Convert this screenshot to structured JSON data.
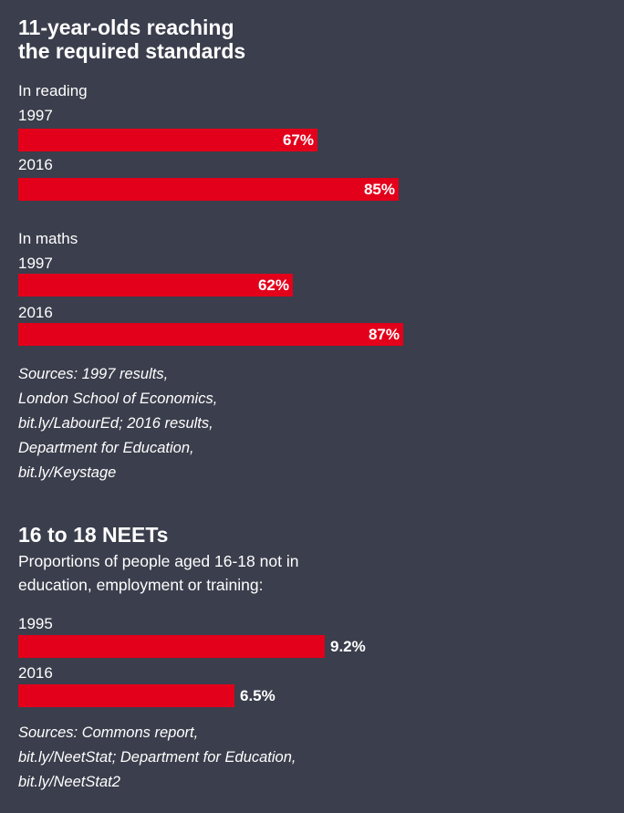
{
  "section1": {
    "title_lines": [
      "11-year-olds reaching",
      "the required standards"
    ],
    "reading_label": "In reading",
    "maths_label": "In maths",
    "sources_lines": [
      "Sources: 1997 results,",
      "London School of Economics,",
      "bit.ly/LabourEd; 2016 results,",
      "Department for Education,",
      "bit.ly/Keystage"
    ]
  },
  "section2": {
    "title": "16 to 18 NEETs",
    "subtitle_lines": [
      "Proportions of people aged 16-18 not in",
      "education, employment or training:"
    ],
    "sources_lines": [
      "Sources: Commons report,",
      "bit.ly/NeetStat; Department for Education,",
      "bit.ly/NeetStat2"
    ]
  },
  "colors": {
    "background": "#3b3e4c",
    "bar": "#e3001b",
    "text": "#ffffff"
  },
  "chart_data": [
    {
      "type": "bar",
      "orientation": "horizontal",
      "title": "11-year-olds reaching the required standards",
      "subtitle": "In reading",
      "categories": [
        "1997",
        "2016"
      ],
      "values": [
        67,
        85
      ],
      "value_labels": [
        "67%",
        "85%"
      ],
      "xlim": [
        0,
        100
      ]
    },
    {
      "type": "bar",
      "orientation": "horizontal",
      "title": "11-year-olds reaching the required standards",
      "subtitle": "In maths",
      "categories": [
        "1997",
        "2016"
      ],
      "values": [
        62,
        87
      ],
      "value_labels": [
        "62%",
        "87%"
      ],
      "xlim": [
        0,
        100
      ]
    },
    {
      "type": "bar",
      "orientation": "horizontal",
      "title": "16 to 18 NEETs",
      "categories": [
        "1995",
        "2016"
      ],
      "values": [
        9.2,
        6.5
      ],
      "value_labels": [
        "9.2%",
        "6.5%"
      ]
    }
  ]
}
